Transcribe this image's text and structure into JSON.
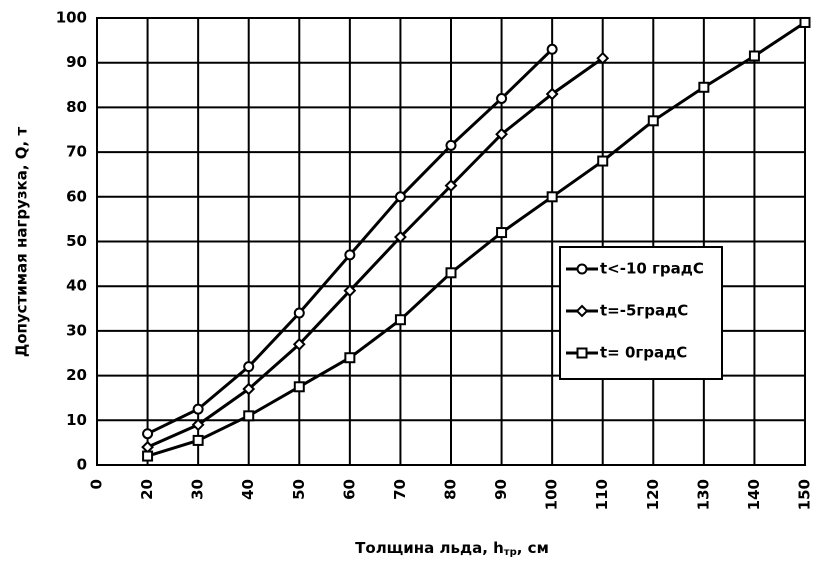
{
  "chart_data": {
    "type": "line",
    "y_label": "Допустимая нагрузка, Q, т",
    "x_label": {
      "main": "Толщина льда, h",
      "sub": "тр",
      "end": ", см"
    },
    "categories": [
      0,
      20,
      30,
      40,
      50,
      60,
      70,
      80,
      90,
      100,
      110,
      120,
      130,
      140,
      150
    ],
    "series": [
      {
        "name": "t<-10 градС",
        "color": "#000000",
        "marker": "circle",
        "values": [
          null,
          7,
          12.5,
          22,
          34,
          47,
          60,
          71.5,
          82,
          93,
          null,
          null,
          null,
          null,
          null
        ]
      },
      {
        "name": "t=-5градС",
        "color": "#000000",
        "marker": "diamond",
        "values": [
          null,
          4,
          9,
          17,
          27,
          39,
          51,
          62.5,
          74,
          83,
          91,
          null,
          null,
          null,
          null
        ]
      },
      {
        "name": "t= 0градС",
        "color": "#000000",
        "marker": "square",
        "values": [
          null,
          2,
          5.5,
          11,
          17.5,
          24,
          32.5,
          43,
          52,
          60,
          68,
          77,
          84.5,
          91.5,
          99
        ]
      }
    ],
    "ylim": [
      0,
      100
    ],
    "yticks": [
      0,
      10,
      20,
      30,
      40,
      50,
      60,
      70,
      80,
      90,
      100
    ],
    "grid": true,
    "legend": "right"
  }
}
